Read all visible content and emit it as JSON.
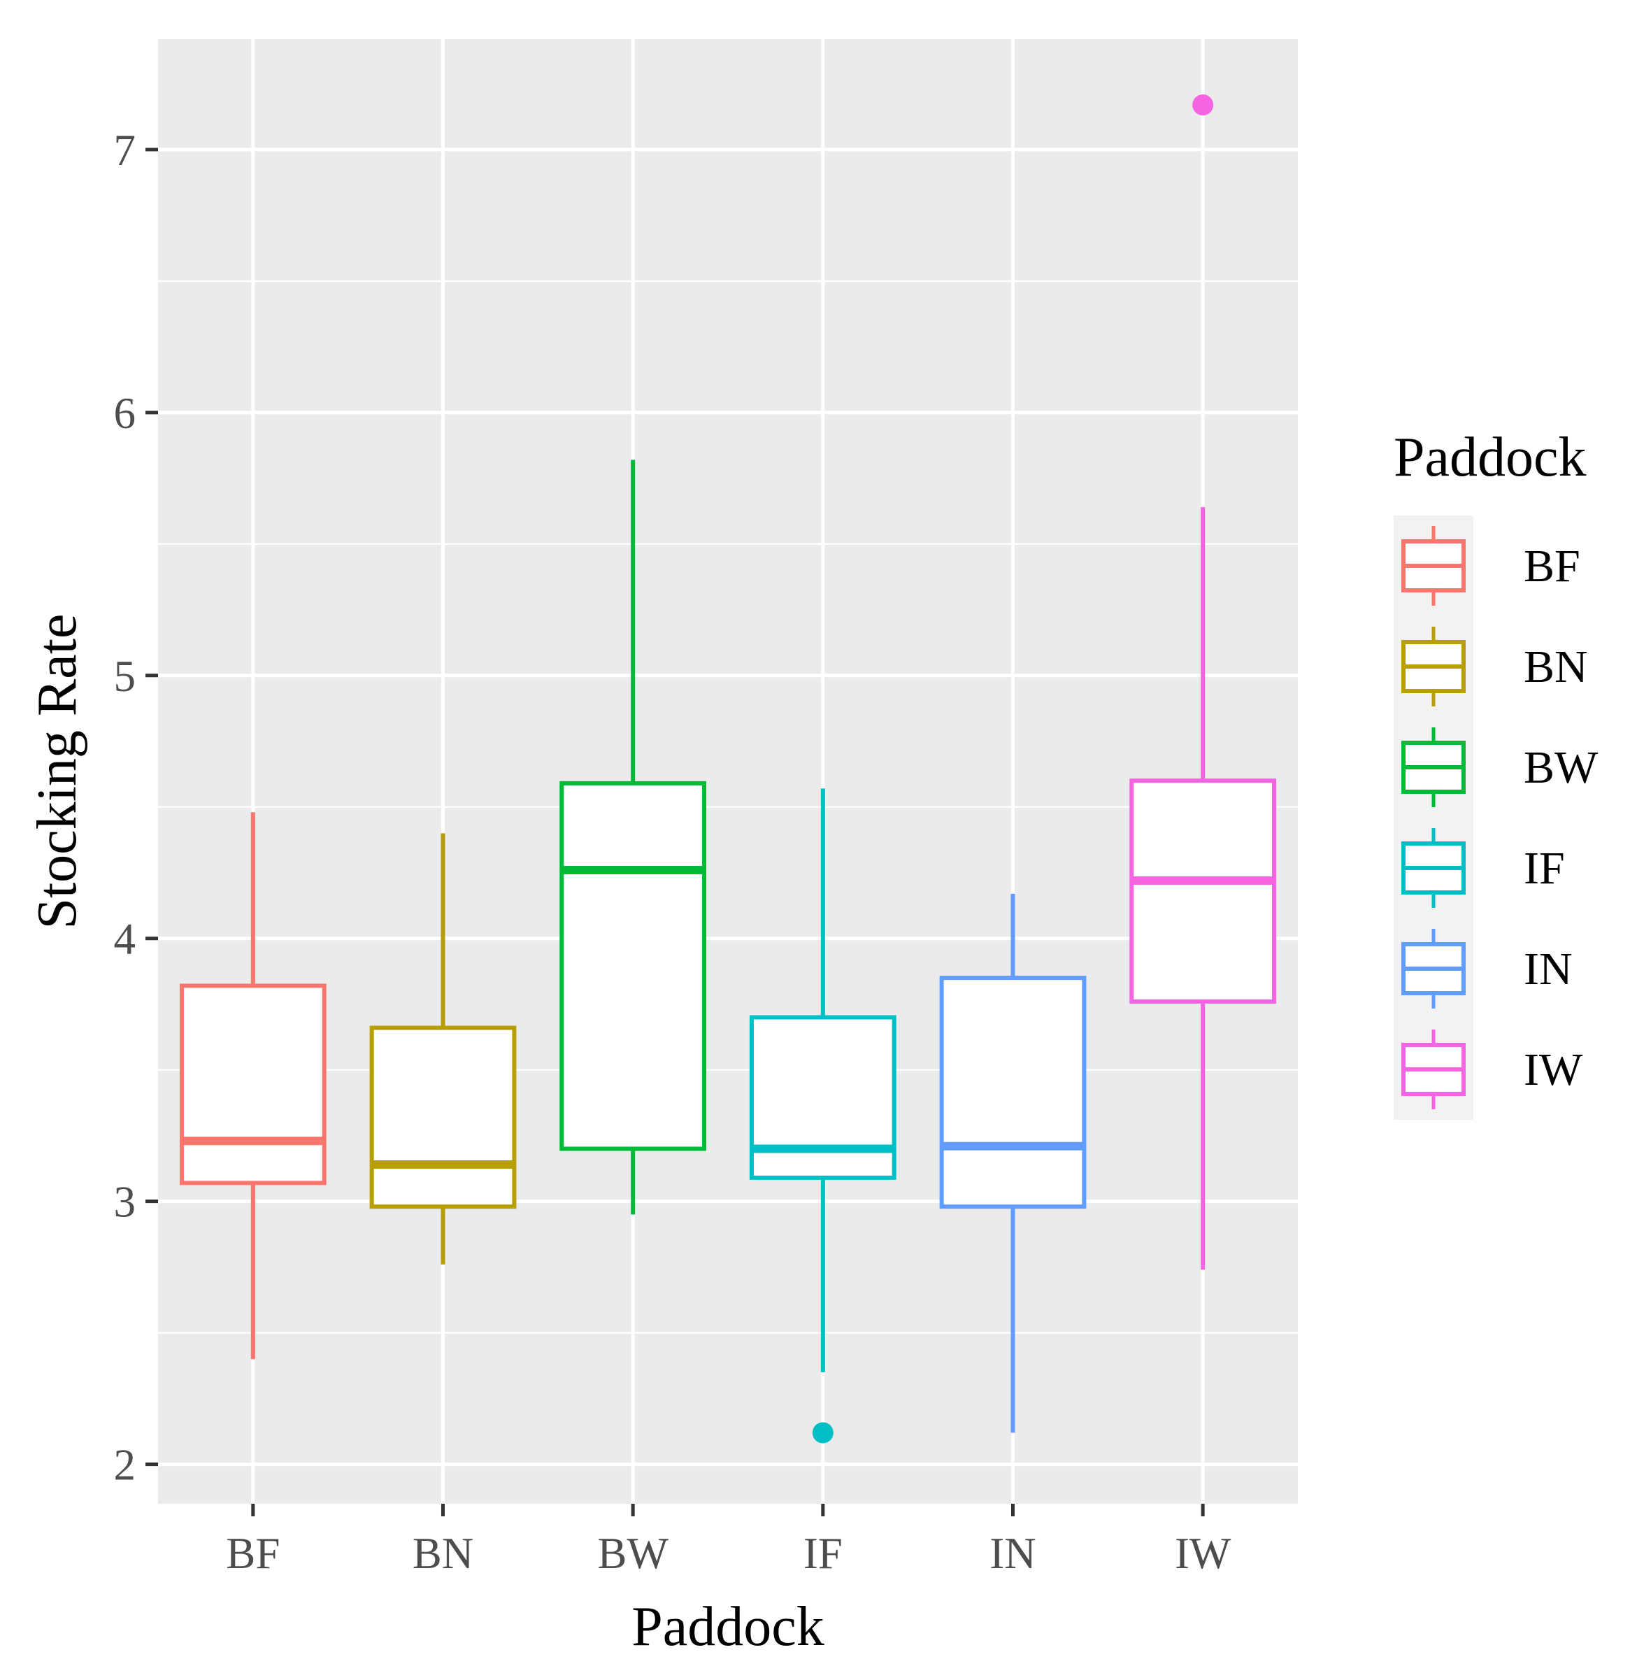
{
  "chart_data": {
    "type": "boxplot",
    "title": "",
    "xlabel": "Paddock",
    "ylabel": "Stocking Rate",
    "ylim": [
      1.85,
      7.42
    ],
    "yticks": [
      2,
      3,
      4,
      5,
      6,
      7
    ],
    "ytick_labels": [
      "2",
      "3",
      "4",
      "5",
      "6",
      "7"
    ],
    "grid": true,
    "legend": {
      "title": "Paddock",
      "position": "right"
    },
    "categories": [
      "BF",
      "BN",
      "BW",
      "IF",
      "IN",
      "IW"
    ],
    "series": [
      {
        "name": "BF",
        "color": "#F8766D",
        "whisker_low": 2.4,
        "q1": 3.07,
        "median": 3.23,
        "q3": 3.82,
        "whisker_high": 4.48,
        "outliers": []
      },
      {
        "name": "BN",
        "color": "#B79F00",
        "whisker_low": 2.76,
        "q1": 2.98,
        "median": 3.14,
        "q3": 3.66,
        "whisker_high": 4.4,
        "outliers": []
      },
      {
        "name": "BW",
        "color": "#00BA38",
        "whisker_low": 2.95,
        "q1": 3.2,
        "median": 4.26,
        "q3": 4.59,
        "whisker_high": 5.82,
        "outliers": []
      },
      {
        "name": "IF",
        "color": "#00BFC4",
        "whisker_low": 2.35,
        "q1": 3.09,
        "median": 3.2,
        "q3": 3.7,
        "whisker_high": 4.57,
        "outliers": [
          2.12
        ]
      },
      {
        "name": "IN",
        "color": "#619CFF",
        "whisker_low": 2.12,
        "q1": 2.98,
        "median": 3.21,
        "q3": 3.85,
        "whisker_high": 4.17,
        "outliers": []
      },
      {
        "name": "IW",
        "color": "#F564E3",
        "whisker_low": 2.74,
        "q1": 3.76,
        "median": 4.22,
        "q3": 4.6,
        "whisker_high": 5.64,
        "outliers": [
          7.17
        ]
      }
    ]
  }
}
